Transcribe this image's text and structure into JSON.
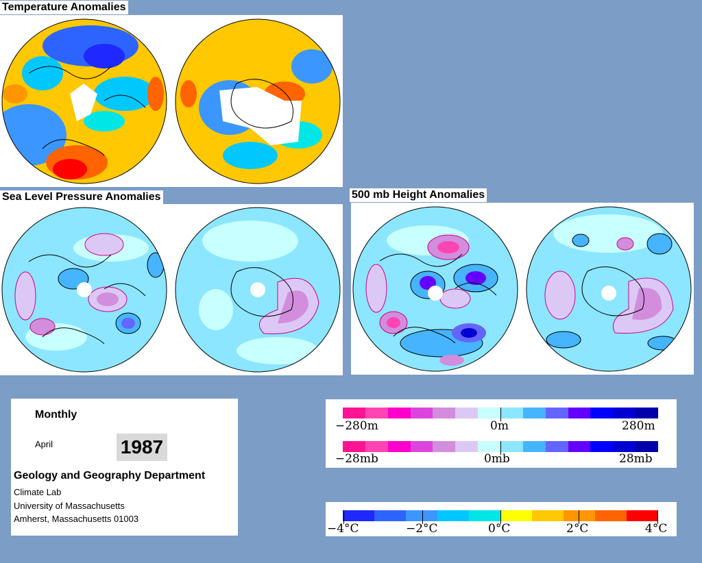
{
  "titles": {
    "temperature": "Temperature Anomalies",
    "slp": "Sea Level Pressure Anomalies",
    "height500": "500 mb Height Anomalies"
  },
  "info": {
    "period": "Monthly",
    "month": "April",
    "year": "1987",
    "department": "Geology and Geography Department",
    "lab": "Climate Lab",
    "university": "University of Massachusetts",
    "address": "Amherst, Massachusetts 01003"
  },
  "legends": {
    "height": {
      "min": "−280m",
      "mid": "0m",
      "max": "280m"
    },
    "pressure": {
      "min": "−28mb",
      "mid": "0mb",
      "max": "28mb"
    },
    "temperature": {
      "l1": "−4°C",
      "l2": "−2°C",
      "l3": "0°C",
      "l4": "2°C",
      "l5": "4°C"
    }
  },
  "colors": {
    "background": "#7b9dc6",
    "anomaly_scale": [
      "#ff1493",
      "#ff44b4",
      "#ff00cc",
      "#dd44dd",
      "#d28ddd",
      "#dcc8f5",
      "#c8ffff",
      "#8ce6ff",
      "#46b4ff",
      "#6464ff",
      "#6400ff",
      "#0000ff",
      "#0000d2",
      "#0000aa"
    ],
    "temperature_scale": [
      "#1e28ff",
      "#2d64ff",
      "#3c96ff",
      "#00c8ff",
      "#00e6e6",
      "#ffff00",
      "#ffc800",
      "#ff9600",
      "#ff6400",
      "#ff0000"
    ]
  }
}
